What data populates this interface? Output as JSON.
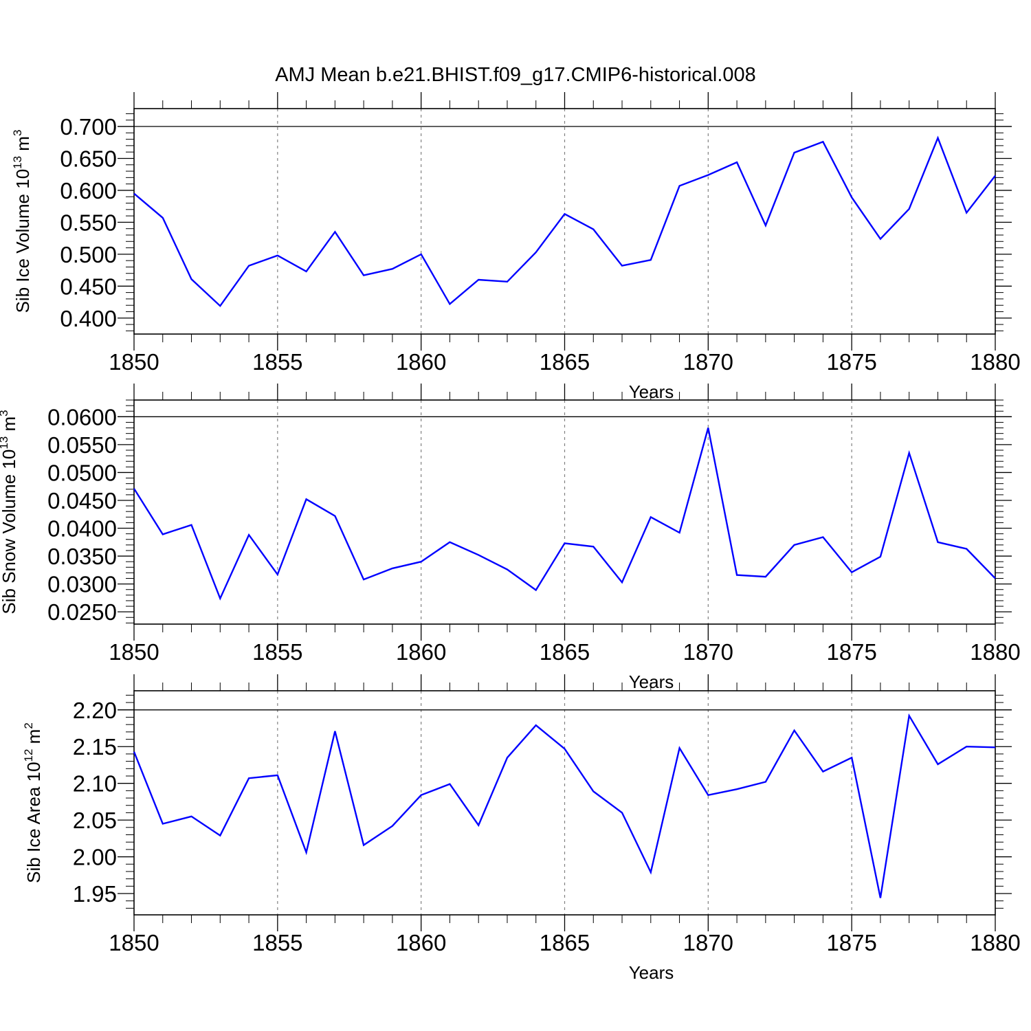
{
  "figure_title": "AMJ Mean b.e21.BHIST.f09_g17.CMIP6-historical.008",
  "colors": {
    "series": "#0000ff",
    "grid": "#808080",
    "axes": "#000000"
  },
  "chart_data": [
    {
      "type": "line",
      "title": "",
      "ylabel": "Sib Ice Volume 10",
      "ylabel_exp": "13",
      "ylabel_unit": " m",
      "ylabel_unit_exp": "3",
      "xlabel": "Years",
      "xlim": [
        1850,
        1880
      ],
      "ylim": [
        0.375,
        0.728
      ],
      "ytick_values": [
        0.4,
        0.45,
        0.5,
        0.55,
        0.6,
        0.65,
        0.7
      ],
      "ytick_labels": [
        "0.400",
        "0.450",
        "0.500",
        "0.550",
        "0.600",
        "0.650",
        "0.700"
      ],
      "yminor_step": 0.01,
      "xtick_values": [
        1850,
        1855,
        1860,
        1865,
        1870,
        1875,
        1880
      ],
      "xtick_labels": [
        "1850",
        "1855",
        "1860",
        "1865",
        "1870",
        "1875",
        "1880"
      ],
      "grid": "vertical-dashed",
      "series": [
        {
          "name": "Sib Ice Volume",
          "x": [
            1850,
            1851,
            1852,
            1853,
            1854,
            1855,
            1856,
            1857,
            1858,
            1859,
            1860,
            1861,
            1862,
            1863,
            1864,
            1865,
            1866,
            1867,
            1868,
            1869,
            1870,
            1871,
            1872,
            1873,
            1874,
            1875,
            1876,
            1877,
            1878,
            1879,
            1880
          ],
          "values": [
            0.595,
            0.557,
            0.461,
            0.419,
            0.482,
            0.498,
            0.473,
            0.535,
            0.467,
            0.477,
            0.5,
            0.422,
            0.46,
            0.457,
            0.503,
            0.563,
            0.539,
            0.482,
            0.491,
            0.607,
            0.624,
            0.644,
            0.545,
            0.659,
            0.676,
            0.589,
            0.524,
            0.571,
            0.682,
            0.565,
            0.623
          ]
        }
      ]
    },
    {
      "type": "line",
      "title": "",
      "ylabel": "Sib Snow Volume 10",
      "ylabel_exp": "13",
      "ylabel_unit": " m",
      "ylabel_unit_exp": "3",
      "xlabel": "Years",
      "xlim": [
        1850,
        1880
      ],
      "ylim": [
        0.0228,
        0.063
      ],
      "ytick_values": [
        0.025,
        0.03,
        0.035,
        0.04,
        0.045,
        0.05,
        0.055,
        0.06
      ],
      "ytick_labels": [
        "0.0250",
        "0.0300",
        "0.0350",
        "0.0400",
        "0.0450",
        "0.0500",
        "0.0550",
        "0.0600"
      ],
      "yminor_step": 0.001,
      "xtick_values": [
        1850,
        1855,
        1860,
        1865,
        1870,
        1875,
        1880
      ],
      "xtick_labels": [
        "1850",
        "1855",
        "1860",
        "1865",
        "1870",
        "1875",
        "1880"
      ],
      "grid": "vertical-dashed",
      "series": [
        {
          "name": "Sib Snow Volume",
          "x": [
            1850,
            1851,
            1852,
            1853,
            1854,
            1855,
            1856,
            1857,
            1858,
            1859,
            1860,
            1861,
            1862,
            1863,
            1864,
            1865,
            1866,
            1867,
            1868,
            1869,
            1870,
            1871,
            1872,
            1873,
            1874,
            1875,
            1876,
            1877,
            1878,
            1879,
            1880
          ],
          "values": [
            0.0471,
            0.0389,
            0.0406,
            0.0274,
            0.0388,
            0.0317,
            0.0452,
            0.0422,
            0.0308,
            0.0328,
            0.034,
            0.0375,
            0.0352,
            0.0326,
            0.0289,
            0.0373,
            0.0367,
            0.0303,
            0.042,
            0.0392,
            0.058,
            0.0316,
            0.0313,
            0.037,
            0.0384,
            0.0321,
            0.0349,
            0.0535,
            0.0375,
            0.0363,
            0.031
          ]
        }
      ]
    },
    {
      "type": "line",
      "title": "",
      "ylabel": "Sib Ice Area 10",
      "ylabel_exp": "12",
      "ylabel_unit": " m",
      "ylabel_unit_exp": "2",
      "xlabel": "Years",
      "xlim": [
        1850,
        1880
      ],
      "ylim": [
        1.921,
        2.226
      ],
      "ytick_values": [
        1.95,
        2.0,
        2.05,
        2.1,
        2.15,
        2.2
      ],
      "ytick_labels": [
        "1.95",
        "2.00",
        "2.05",
        "2.10",
        "2.15",
        "2.20"
      ],
      "yminor_step": 0.01,
      "xtick_values": [
        1850,
        1855,
        1860,
        1865,
        1870,
        1875,
        1880
      ],
      "xtick_labels": [
        "1850",
        "1855",
        "1860",
        "1865",
        "1870",
        "1875",
        "1880"
      ],
      "grid": "vertical-dashed",
      "series": [
        {
          "name": "Sib Ice Area",
          "x": [
            1850,
            1851,
            1852,
            1853,
            1854,
            1855,
            1856,
            1857,
            1858,
            1859,
            1860,
            1861,
            1862,
            1863,
            1864,
            1865,
            1866,
            1867,
            1868,
            1869,
            1870,
            1871,
            1872,
            1873,
            1874,
            1875,
            1876,
            1877,
            1878,
            1879,
            1880
          ],
          "values": [
            2.143,
            2.045,
            2.055,
            2.029,
            2.107,
            2.111,
            2.006,
            2.171,
            2.016,
            2.042,
            2.084,
            2.099,
            2.043,
            2.135,
            2.179,
            2.147,
            2.089,
            2.06,
            1.979,
            2.148,
            2.084,
            2.092,
            2.102,
            2.172,
            2.116,
            2.135,
            1.944,
            2.192,
            2.126,
            2.15,
            2.149
          ]
        }
      ]
    }
  ]
}
